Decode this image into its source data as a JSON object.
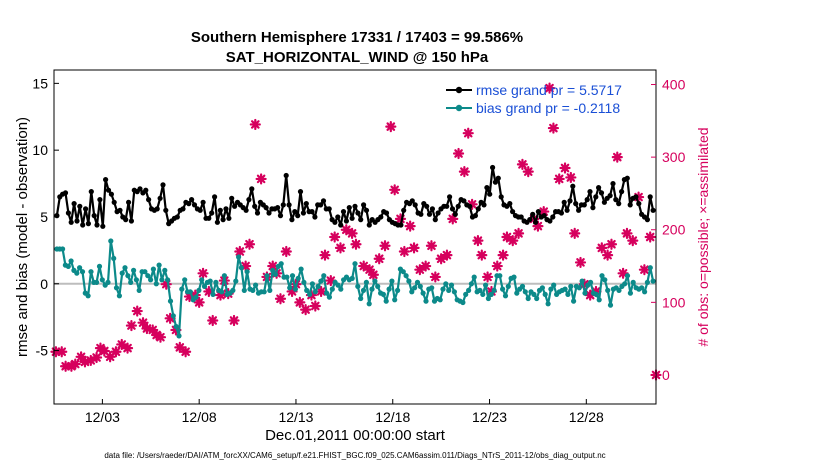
{
  "chart_data": {
    "type": "line",
    "title": "Southern Hemisphere 17331 / 17403 = 99.586%",
    "subtitle": "SAT_HORIZONTAL_WIND @ 150 hPa",
    "xlabel": "Dec.01,2011 00:00:00 start",
    "ylabel": "rmse and bias (model - observation)",
    "ylabel_right": "# of obs: o=possible; ×=assimilated",
    "footnote": "data file: /Users/raeder/DAI/ATM_forcXX/CAM6_setup/f.e21.FHIST_BGC.f09_025.CAM6assim.011/Diags_NTrS_2011-12/obs_diag_output.nc",
    "xlim": [
      0.5,
      31.6
    ],
    "ylim": [
      -9,
      16
    ],
    "ylim_right": [
      -40,
      420
    ],
    "xticks": [
      3,
      8,
      13,
      18,
      23,
      28
    ],
    "xtick_labels": [
      "12/03",
      "12/08",
      "12/13",
      "12/18",
      "12/23",
      "12/28"
    ],
    "yticks": [
      -5,
      0,
      5,
      10,
      15
    ],
    "yticks_right": [
      0,
      100,
      200,
      300,
      400
    ],
    "colors": {
      "rmse": "#000000",
      "bias": "#0c8a8a",
      "obs": "#d6005d",
      "zero": "#bdbdbd",
      "legend_text": "#1a4fd6"
    },
    "legend": [
      "rmse grand pr = 5.5717",
      "bias grand pr = -0.2118"
    ],
    "series": [
      {
        "name": "rmse",
        "axis": "left",
        "values": [
          5.1,
          6.5,
          6.7,
          6.8,
          5.3,
          4.6,
          6.0,
          4.7,
          5.8,
          4.4,
          5.6,
          4.5,
          6.9,
          5.1,
          4.4,
          6.3,
          4.3,
          7.8,
          7.0,
          6.7,
          6.1,
          5.4,
          5.5,
          5.0,
          4.8,
          6.1,
          4.7,
          7.0,
          6.9,
          7.1,
          6.8,
          7.0,
          6.3,
          5.6,
          5.5,
          5.6,
          6.4,
          7.4,
          5.5,
          4.5,
          4.7,
          4.9,
          5.0,
          5.5,
          5.6,
          6.1,
          6.0,
          6.3,
          5.9,
          5.6,
          5.5,
          6.1,
          4.9,
          4.9,
          5.3,
          6.5,
          4.6,
          5.5,
          4.8,
          5.6,
          4.9,
          6.4,
          5.8,
          6.1,
          5.9,
          5.7,
          5.5,
          6.3,
          7.1,
          5.8,
          5.3,
          6.1,
          5.9,
          5.7,
          5.3,
          5.6,
          5.6,
          5.7,
          5.1,
          5.9,
          8.1,
          5.9,
          4.8,
          5.4,
          5.1,
          6.9,
          5.3,
          6.0,
          5.4,
          5.4,
          5.0,
          5.9,
          5.9,
          6.2,
          5.6,
          5.6,
          4.8,
          4.6,
          5.0,
          4.4,
          5.4,
          4.7,
          5.7,
          4.9,
          5.8,
          5.3,
          4.8,
          5.9,
          5.5,
          4.4,
          4.8,
          4.6,
          4.8,
          5.0,
          5.4,
          5.3,
          4.8,
          4.6,
          4.5,
          4.4,
          4.4,
          5.5,
          6.1,
          6.0,
          6.2,
          5.9,
          5.3,
          5.2,
          6.0,
          5.8,
          5.2,
          5.6,
          4.8,
          5.3,
          5.6,
          5.8,
          5.8,
          6.5,
          5.6,
          5.2,
          5.8,
          6.3,
          6.2,
          5.9,
          5.8,
          5.0,
          5.1,
          5.6,
          6.1,
          5.9,
          7.2,
          6.7,
          8.7,
          7.6,
          7.9,
          6.5,
          5.9,
          5.8,
          6.0,
          5.4,
          5.1,
          5.0,
          5.0,
          4.7,
          4.6,
          4.8,
          5.2,
          4.6,
          5.4,
          5.0,
          5.1,
          4.8,
          4.7,
          5.0,
          5.4,
          5.4,
          5.3,
          6.1,
          5.5,
          6.2,
          7.3,
          6.0,
          5.5,
          5.9,
          5.9,
          6.3,
          6.9,
          5.7,
          6.5,
          7.2,
          6.8,
          6.1,
          6.4,
          6.6,
          7.5,
          6.3,
          6.0,
          6.9,
          7.8,
          7.9,
          5.9,
          6.4,
          6.5,
          6.0,
          5.2,
          5.0,
          4.8,
          6.5,
          5.5
        ]
      },
      {
        "name": "bias",
        "axis": "left",
        "values": [
          2.6,
          2.6,
          2.6,
          1.4,
          1.3,
          1.7,
          1.0,
          0.8,
          1.2,
          0.9,
          -0.7,
          -0.9,
          0.9,
          0.1,
          0.1,
          1.3,
          0.3,
          -0.1,
          0.1,
          3.2,
          1.9,
          -0.3,
          -0.9,
          0.8,
          1.2,
          0.6,
          0.1,
          1.0,
          0.3,
          -0.5,
          0.9,
          0.9,
          0.6,
          0.3,
          1.1,
          0.0,
          1.4,
          0.3,
          1.0,
          0.3,
          -1.3,
          -2.4,
          -3.2,
          -3.9,
          -0.4,
          0.3,
          -0.6,
          -0.6,
          -1.2,
          -1.0,
          -0.5,
          0.3,
          -0.2,
          0.1,
          0.2,
          -0.8,
          0.1,
          -0.5,
          -0.6,
          0.6,
          -0.8,
          -0.7,
          -0.5,
          0.2,
          2.0,
          1.2,
          -0.5,
          0.9,
          -0.4,
          -0.5,
          -0.1,
          -0.7,
          -0.6,
          -0.6,
          0.6,
          -0.5,
          1.0,
          0.7,
          1.3,
          1.5,
          0.5,
          0.5,
          -0.3,
          0.6,
          -0.4,
          0.4,
          1.1,
          0.1,
          -0.5,
          -0.8,
          0.0,
          -0.6,
          -0.2,
          0.2,
          0.6,
          -0.7,
          -1.0,
          -0.4,
          0.1,
          -0.1,
          -0.4,
          0.3,
          0.5,
          0.3,
          0.4,
          1.5,
          -0.2,
          -1.1,
          -0.5,
          0.1,
          -1.5,
          -0.4,
          0.2,
          -0.2,
          -0.7,
          -0.8,
          -1.3,
          -0.4,
          0.2,
          -1.2,
          -0.5,
          1.1,
          0.9,
          0.6,
          0.2,
          -0.6,
          -0.3,
          0.1,
          -0.2,
          -0.7,
          -1.3,
          -0.4,
          -0.3,
          -1.3,
          -1.1,
          -1.2,
          -0.4,
          0.0,
          -0.5,
          -0.1,
          -0.6,
          -1.2,
          -1.3,
          -1.4,
          -0.8,
          -0.5,
          0.0,
          0.5,
          -0.6,
          -0.5,
          -0.8,
          -0.1,
          -1.1,
          -0.8,
          -0.5,
          0.6,
          0.6,
          -0.4,
          -0.9,
          -0.2,
          0.4,
          0.5,
          -0.7,
          -0.4,
          -0.2,
          -0.6,
          -1.1,
          -0.6,
          -0.8,
          -1.1,
          -0.5,
          -0.3,
          -0.8,
          -1.5,
          -0.4,
          -0.1,
          -0.8,
          -0.6,
          -0.5,
          -0.4,
          -0.8,
          -0.2,
          -1.3,
          -0.2,
          -0.3,
          0.2,
          -0.7,
          -0.1,
          0.1,
          -0.7,
          -0.8,
          -1.2,
          0.6,
          0.3,
          -0.5,
          -1.6,
          -0.4,
          -0.3,
          -0.5,
          -0.2,
          0.0,
          0.6,
          -0.7,
          0.1,
          -0.3,
          -0.4,
          -0.3,
          -0.6,
          0.1,
          1.2,
          0.2
        ]
      },
      {
        "name": "assimilated",
        "axis": "right",
        "points": [
          [
            0.6,
            32
          ],
          [
            0.9,
            32
          ],
          [
            1.1,
            12
          ],
          [
            1.4,
            12
          ],
          [
            1.6,
            15
          ],
          [
            1.9,
            25
          ],
          [
            2.1,
            18
          ],
          [
            2.4,
            20
          ],
          [
            2.7,
            24
          ],
          [
            2.9,
            37
          ],
          [
            3.1,
            33
          ],
          [
            3.4,
            25
          ],
          [
            3.7,
            32
          ],
          [
            4.0,
            42
          ],
          [
            4.3,
            37
          ],
          [
            4.5,
            68
          ],
          [
            4.8,
            88
          ],
          [
            5.1,
            72
          ],
          [
            5.3,
            64
          ],
          [
            5.6,
            62
          ],
          [
            5.8,
            55
          ],
          [
            6.0,
            52
          ],
          [
            6.3,
            125
          ],
          [
            6.5,
            78
          ],
          [
            6.8,
            62
          ],
          [
            7.0,
            38
          ],
          [
            7.3,
            32
          ],
          [
            7.5,
            108
          ],
          [
            7.8,
            110
          ],
          [
            8.0,
            100
          ],
          [
            8.2,
            140
          ],
          [
            8.5,
            115
          ],
          [
            8.7,
            75
          ],
          [
            9.1,
            110
          ],
          [
            9.3,
            130
          ],
          [
            9.5,
            112
          ],
          [
            9.8,
            75
          ],
          [
            10.1,
            170
          ],
          [
            10.4,
            150
          ],
          [
            10.6,
            180
          ],
          [
            10.9,
            345
          ],
          [
            11.2,
            270
          ],
          [
            11.5,
            135
          ],
          [
            11.8,
            150
          ],
          [
            12.0,
            140
          ],
          [
            12.2,
            105
          ],
          [
            12.5,
            170
          ],
          [
            12.8,
            115
          ],
          [
            13.0,
            125
          ],
          [
            13.2,
            100
          ],
          [
            13.5,
            90
          ],
          [
            13.8,
            110
          ],
          [
            14.0,
            95
          ],
          [
            14.3,
            115
          ],
          [
            14.5,
            165
          ],
          [
            14.8,
            130
          ],
          [
            15.0,
            190
          ],
          [
            15.3,
            175
          ],
          [
            15.6,
            200
          ],
          [
            15.9,
            195
          ],
          [
            16.1,
            180
          ],
          [
            16.5,
            150
          ],
          [
            16.8,
            145
          ],
          [
            17.0,
            138
          ],
          [
            17.3,
            160
          ],
          [
            17.6,
            178
          ],
          [
            17.9,
            342
          ],
          [
            18.1,
            255
          ],
          [
            18.4,
            215
          ],
          [
            18.6,
            170
          ],
          [
            18.9,
            205
          ],
          [
            19.1,
            175
          ],
          [
            19.4,
            145
          ],
          [
            19.7,
            150
          ],
          [
            20.0,
            178
          ],
          [
            20.2,
            135
          ],
          [
            20.5,
            160
          ],
          [
            20.8,
            165
          ],
          [
            21.1,
            215
          ],
          [
            21.4,
            305
          ],
          [
            21.7,
            280
          ],
          [
            21.9,
            333
          ],
          [
            22.1,
            235
          ],
          [
            22.4,
            185
          ],
          [
            22.6,
            165
          ],
          [
            22.9,
            135
          ],
          [
            23.1,
            115
          ],
          [
            23.4,
            150
          ],
          [
            23.7,
            165
          ],
          [
            23.9,
            190
          ],
          [
            24.2,
            185
          ],
          [
            24.5,
            195
          ],
          [
            24.7,
            290
          ],
          [
            25.0,
            280
          ],
          [
            25.3,
            215
          ],
          [
            25.5,
            205
          ],
          [
            25.8,
            225
          ],
          [
            26.1,
            395
          ],
          [
            26.3,
            340
          ],
          [
            26.6,
            270
          ],
          [
            26.9,
            285
          ],
          [
            27.2,
            272
          ],
          [
            27.4,
            195
          ],
          [
            27.7,
            155
          ],
          [
            27.9,
            125
          ],
          [
            28.2,
            110
          ],
          [
            28.5,
            115
          ],
          [
            28.8,
            175
          ],
          [
            29.1,
            165
          ],
          [
            29.3,
            180
          ],
          [
            29.6,
            300
          ],
          [
            29.9,
            140
          ],
          [
            30.1,
            195
          ],
          [
            30.4,
            185
          ],
          [
            30.7,
            245
          ],
          [
            31.0,
            145
          ],
          [
            31.3,
            190
          ],
          [
            31.6,
            0
          ]
        ]
      }
    ]
  }
}
